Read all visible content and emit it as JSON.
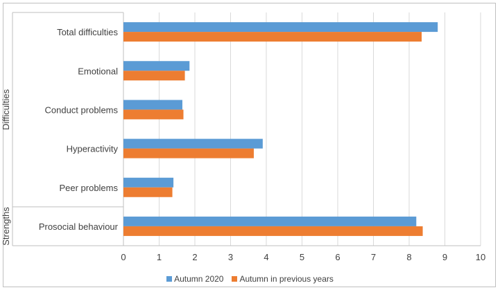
{
  "chart_data": {
    "type": "bar",
    "orientation": "horizontal",
    "categories": [
      "Total difficulties",
      "Emotional",
      "Conduct problems",
      "Hyperactivity",
      "Peer problems",
      "Prosocial behaviour"
    ],
    "groups": [
      {
        "label": "Difficulties",
        "categories": [
          "Total difficulties",
          "Emotional",
          "Conduct problems",
          "Hyperactivity",
          "Peer problems"
        ]
      },
      {
        "label": "Strengths",
        "categories": [
          "Prosocial behaviour"
        ]
      }
    ],
    "series": [
      {
        "name": "Autumn 2020",
        "color": "#5b9bd5",
        "values": [
          8.8,
          1.85,
          1.65,
          3.9,
          1.4,
          8.2
        ]
      },
      {
        "name": "Autumn in previous years",
        "color": "#ed7d31",
        "values": [
          8.35,
          1.72,
          1.68,
          3.65,
          1.37,
          8.38
        ]
      }
    ],
    "xlim": [
      0,
      10
    ],
    "xticks": [
      "0",
      "1",
      "2",
      "3",
      "4",
      "5",
      "6",
      "7",
      "8",
      "9",
      "10"
    ],
    "grid": true,
    "legend_position": "bottom",
    "title": "",
    "xlabel": "",
    "ylabel": ""
  }
}
